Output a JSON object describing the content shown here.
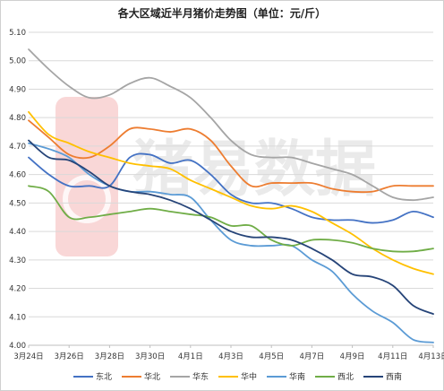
{
  "chart_data": {
    "type": "line",
    "title": "各大区域近半月猪价走势图（单位：元/斤）",
    "xlabel": "",
    "ylabel": "",
    "ylim": [
      4.0,
      5.1
    ],
    "y_ticks": [
      "4.00",
      "4.10",
      "4.20",
      "4.30",
      "4.40",
      "4.50",
      "4.60",
      "4.70",
      "4.80",
      "4.90",
      "5.00",
      "5.10"
    ],
    "x_ticks": [
      "3月24日",
      "3月26日",
      "3月28日",
      "3月30日",
      "4月1日",
      "4月3日",
      "4月5日",
      "4月7日",
      "4月9日",
      "4月11日",
      "4月13日"
    ],
    "n_days": 21,
    "grid": true,
    "legend_position": "bottom",
    "watermark_text": "猪易数据",
    "series": [
      {
        "name": "东北",
        "color": "#4472c4",
        "values": [
          4.66,
          4.6,
          4.56,
          4.56,
          4.56,
          4.66,
          4.67,
          4.64,
          4.65,
          4.6,
          4.53,
          4.5,
          4.5,
          4.48,
          4.45,
          4.44,
          4.44,
          4.43,
          4.44,
          4.47,
          4.45
        ]
      },
      {
        "name": "华北",
        "color": "#ed7d31",
        "values": [
          4.79,
          4.73,
          4.67,
          4.66,
          4.7,
          4.76,
          4.76,
          4.75,
          4.76,
          4.72,
          4.63,
          4.56,
          4.57,
          4.57,
          4.57,
          4.55,
          4.54,
          4.54,
          4.56,
          4.56,
          4.56
        ]
      },
      {
        "name": "华东",
        "color": "#a5a5a5",
        "values": [
          5.04,
          4.97,
          4.91,
          4.87,
          4.88,
          4.92,
          4.94,
          4.91,
          4.87,
          4.8,
          4.72,
          4.67,
          4.66,
          4.66,
          4.64,
          4.62,
          4.6,
          4.56,
          4.52,
          4.51,
          4.52
        ]
      },
      {
        "name": "华中",
        "color": "#ffc000",
        "values": [
          4.82,
          4.74,
          4.71,
          4.68,
          4.66,
          4.64,
          4.63,
          4.62,
          4.58,
          4.55,
          4.52,
          4.49,
          4.48,
          4.49,
          4.47,
          4.43,
          4.39,
          4.34,
          4.3,
          4.27,
          4.25
        ]
      },
      {
        "name": "华南",
        "color": "#5b9bd5",
        "values": [
          4.71,
          4.69,
          4.66,
          4.6,
          4.56,
          4.54,
          4.54,
          4.53,
          4.52,
          4.44,
          4.37,
          4.35,
          4.35,
          4.35,
          4.3,
          4.26,
          4.18,
          4.12,
          4.08,
          4.02,
          4.01
        ]
      },
      {
        "name": "西北",
        "color": "#70ad47",
        "values": [
          4.56,
          4.54,
          4.45,
          4.45,
          4.46,
          4.47,
          4.48,
          4.47,
          4.46,
          4.45,
          4.42,
          4.42,
          4.37,
          4.35,
          4.37,
          4.37,
          4.36,
          4.34,
          4.33,
          4.33,
          4.34
        ]
      },
      {
        "name": "西南",
        "color": "#264478",
        "values": [
          4.72,
          4.66,
          4.65,
          4.61,
          4.56,
          4.54,
          4.53,
          4.51,
          4.48,
          4.44,
          4.4,
          4.38,
          4.38,
          4.37,
          4.34,
          4.3,
          4.25,
          4.24,
          4.21,
          4.14,
          4.11
        ]
      }
    ]
  }
}
